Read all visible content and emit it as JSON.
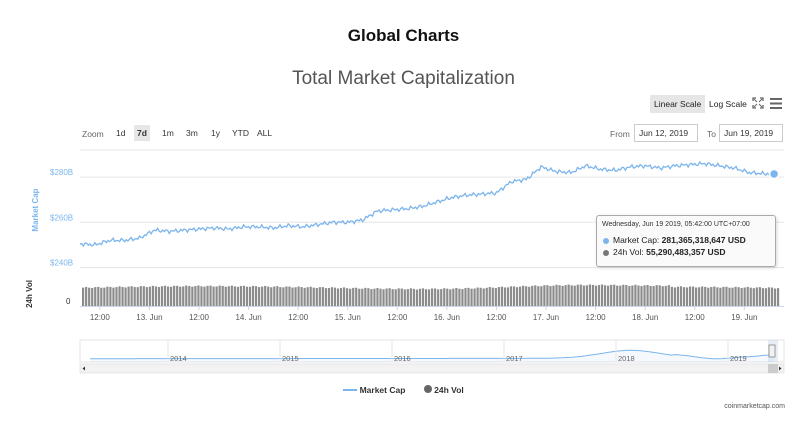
{
  "header": {
    "title": "Global Charts"
  },
  "chart": {
    "title": "Total Market Capitalization",
    "scale_buttons": {
      "linear": "Linear Scale",
      "log": "Log Scale"
    },
    "icons": {
      "fullscreen": "fullscreen-icon",
      "menu": "menu-icon"
    },
    "zoom": {
      "label": "Zoom",
      "options": [
        "1d",
        "7d",
        "1m",
        "3m",
        "1y",
        "YTD",
        "ALL"
      ],
      "selected": "7d"
    },
    "range": {
      "from_label": "From",
      "from_value": "Jun 12, 2019",
      "to_label": "To",
      "to_value": "Jun 19, 2019"
    },
    "tooltip": {
      "time": "Wednesday, Jun 19 2019, 05:42:00 UTC+07:00",
      "market_cap_label": "Market Cap:",
      "market_cap_value": "281,365,318,647 USD",
      "volume_label": "24h Vol:",
      "volume_value": "55,290,483,357 USD"
    },
    "legend": {
      "market_cap": "Market Cap",
      "volume": "24h Vol"
    },
    "credit": "coinmarketcap.com",
    "colors": {
      "market_cap": "#7cb5ec",
      "volume": "#777777",
      "accent_y_axis": "#7cb5ec"
    }
  },
  "chart_data": {
    "type": "line",
    "y_axis_label": "Market Cap",
    "y_ticks": [
      "$240B",
      "$260B",
      "$280B"
    ],
    "y_tick_values": [
      240,
      260,
      280
    ],
    "y_unit": "billion USD",
    "y_range": [
      238,
      292
    ],
    "x_ticks": [
      "12:00",
      "13. Jun",
      "12:00",
      "14. Jun",
      "12:00",
      "15. Jun",
      "12:00",
      "16. Jun",
      "12:00",
      "17. Jun",
      "12:00",
      "18. Jun",
      "12:00",
      "19. Jun"
    ],
    "x_range_days": [
      0,
      7.1
    ],
    "market_cap_series": {
      "name": "Market Cap",
      "x_days": [
        0.0,
        0.15,
        0.3,
        0.45,
        0.6,
        0.75,
        0.9,
        1.05,
        1.2,
        1.35,
        1.5,
        1.65,
        1.8,
        1.95,
        2.1,
        2.25,
        2.4,
        2.55,
        2.7,
        2.85,
        3.0,
        3.15,
        3.3,
        3.45,
        3.6,
        3.75,
        3.9,
        4.05,
        4.2,
        4.35,
        4.5,
        4.65,
        4.8,
        4.95,
        5.1,
        5.25,
        5.4,
        5.55,
        5.7,
        5.85,
        6.0,
        6.15,
        6.3,
        6.45,
        6.6,
        6.75,
        6.9,
        7.0
      ],
      "values": [
        250.5,
        250.0,
        252.0,
        252.0,
        253.0,
        256.5,
        256.0,
        256.5,
        257.0,
        257.5,
        257.0,
        258.0,
        258.0,
        257.5,
        258.5,
        258.0,
        259.0,
        260.0,
        260.0,
        261.0,
        265.0,
        265.5,
        266.0,
        267.0,
        269.0,
        271.0,
        272.0,
        272.5,
        273.0,
        278.0,
        279.0,
        284.5,
        282.5,
        282.0,
        285.0,
        283.5,
        283.0,
        284.5,
        285.0,
        284.0,
        285.0,
        285.5,
        286.0,
        285.0,
        284.0,
        282.0,
        281.5,
        281.4
      ]
    },
    "volume_series": {
      "name": "24h Vol",
      "unit": "billion USD",
      "level_min": 40,
      "level_max": 58
    },
    "navigator": {
      "x_ticks": [
        "2014",
        "2015",
        "2016",
        "2017",
        "2018",
        "2019"
      ]
    },
    "zero_label": "0",
    "volume_axis_label": "24h Vol"
  }
}
